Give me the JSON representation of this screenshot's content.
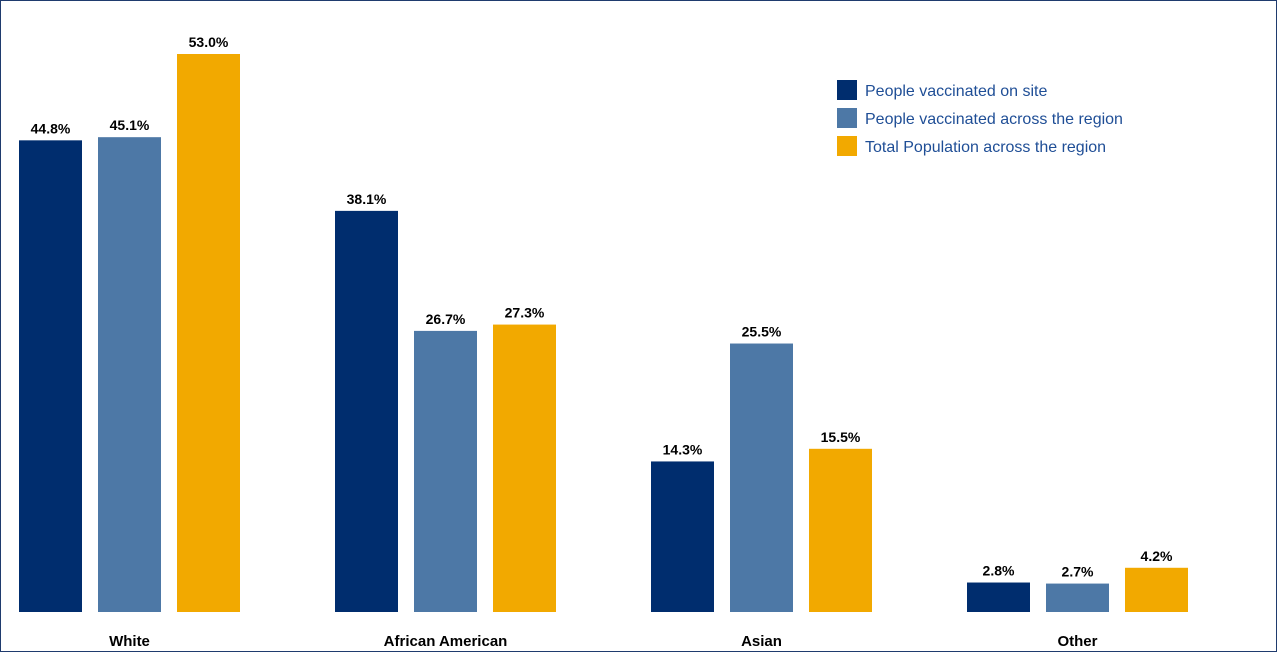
{
  "chart_data": {
    "type": "bar",
    "title": "",
    "xlabel": "",
    "ylabel": "",
    "ylim": [
      0,
      55
    ],
    "grid": false,
    "legend_position": "top-right",
    "categories": [
      "White",
      "African American",
      "Asian",
      "Other"
    ],
    "series": [
      {
        "name": "People vaccinated on site",
        "color": "#002d6e",
        "values": [
          44.8,
          38.1,
          14.3,
          2.8
        ],
        "labels": [
          "44.8%",
          "38.1%",
          "14.3%",
          "2.8%"
        ]
      },
      {
        "name": "People vaccinated across the region",
        "color": "#4d78a6",
        "values": [
          45.1,
          26.7,
          25.5,
          2.7
        ],
        "labels": [
          "45.1%",
          "26.7%",
          "25.5%",
          "2.7%"
        ]
      },
      {
        "name": "Total Population across the region",
        "color": "#f2a900",
        "values": [
          53.0,
          27.3,
          15.5,
          4.2
        ],
        "labels": [
          "53.0%",
          "27.3%",
          "15.5%",
          "4.2%"
        ]
      }
    ]
  }
}
